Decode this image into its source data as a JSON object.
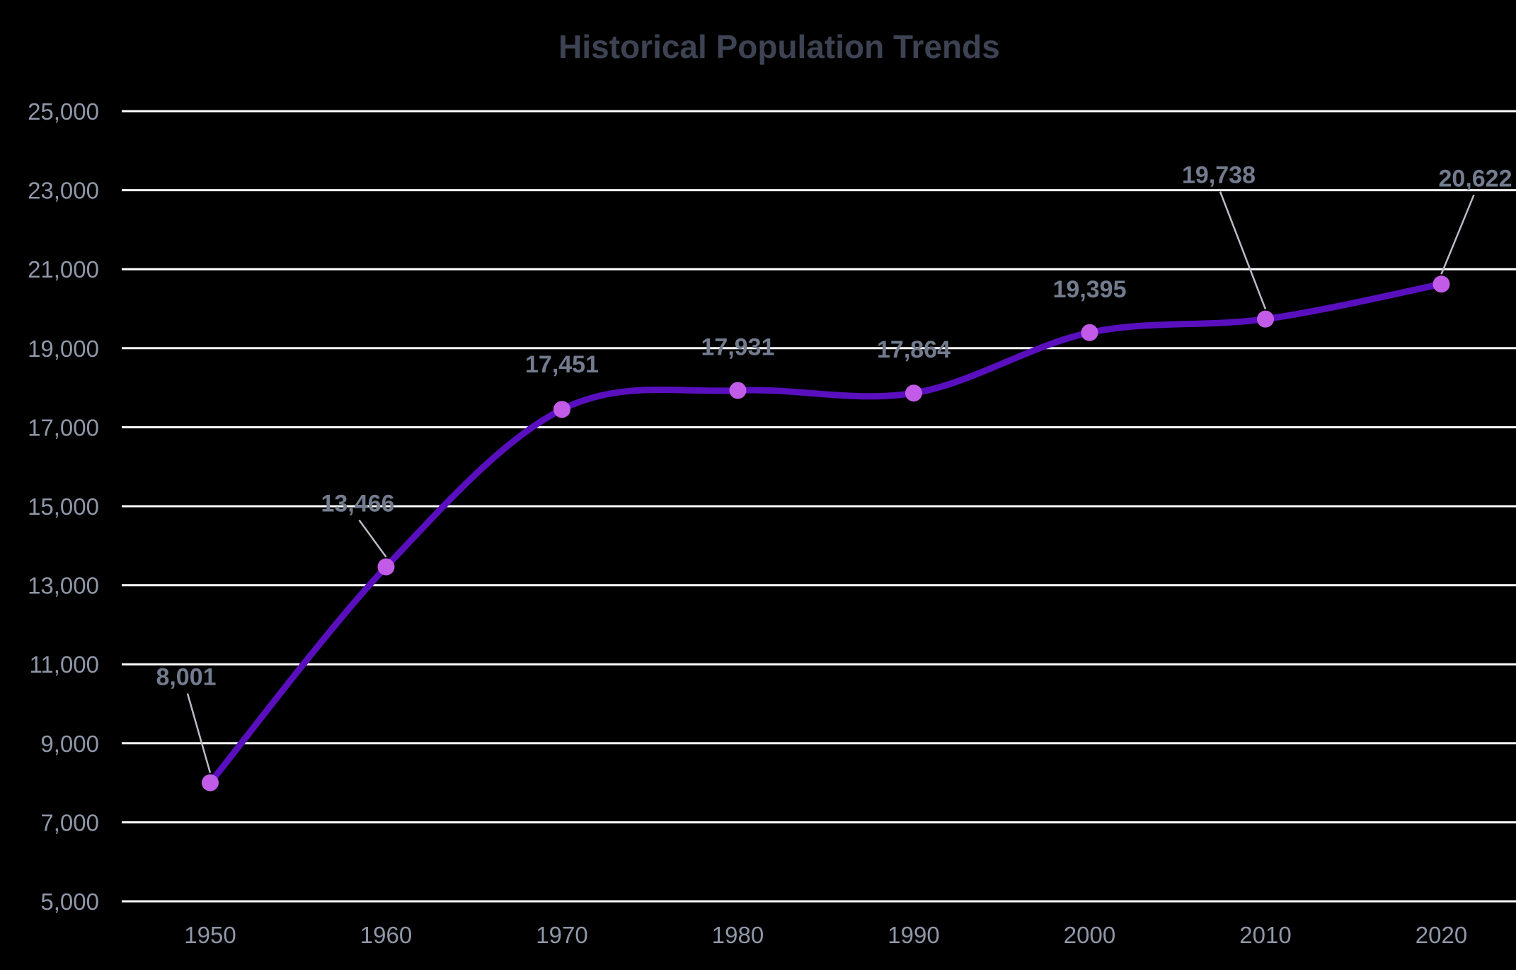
{
  "chart_data": {
    "type": "line",
    "title": "Historical Population Trends",
    "xlabel": "",
    "ylabel": "",
    "categories": [
      "1950",
      "1960",
      "1970",
      "1980",
      "1990",
      "2000",
      "2010",
      "2020"
    ],
    "series": [
      {
        "values": [
          8001,
          13466,
          17451,
          17931,
          17864,
          19395,
          19738,
          20622
        ],
        "data_labels": [
          "8,001",
          "13,466",
          "17,451",
          "17,931",
          "17,864",
          "19,395",
          "19,738",
          "20,622"
        ]
      }
    ],
    "ylim": [
      5000,
      25000
    ],
    "y_ticks": [
      5000,
      7000,
      9000,
      11000,
      13000,
      15000,
      17000,
      19000,
      21000,
      23000,
      25000
    ],
    "y_tick_labels": [
      "5,000",
      "7,000",
      "9,000",
      "11,000",
      "13,000",
      "15,000",
      "17,000",
      "19,000",
      "21,000",
      "23,000",
      "25,000"
    ],
    "grid": true,
    "legend": "none",
    "smooth": true,
    "colors": {
      "background": "#000000",
      "line": "#5a0fbf",
      "marker": "#c25ce8",
      "gridline": "#ffffff",
      "title": "#3d4352",
      "tick_label": "#8f97a8",
      "data_label": "#737c8f"
    }
  }
}
